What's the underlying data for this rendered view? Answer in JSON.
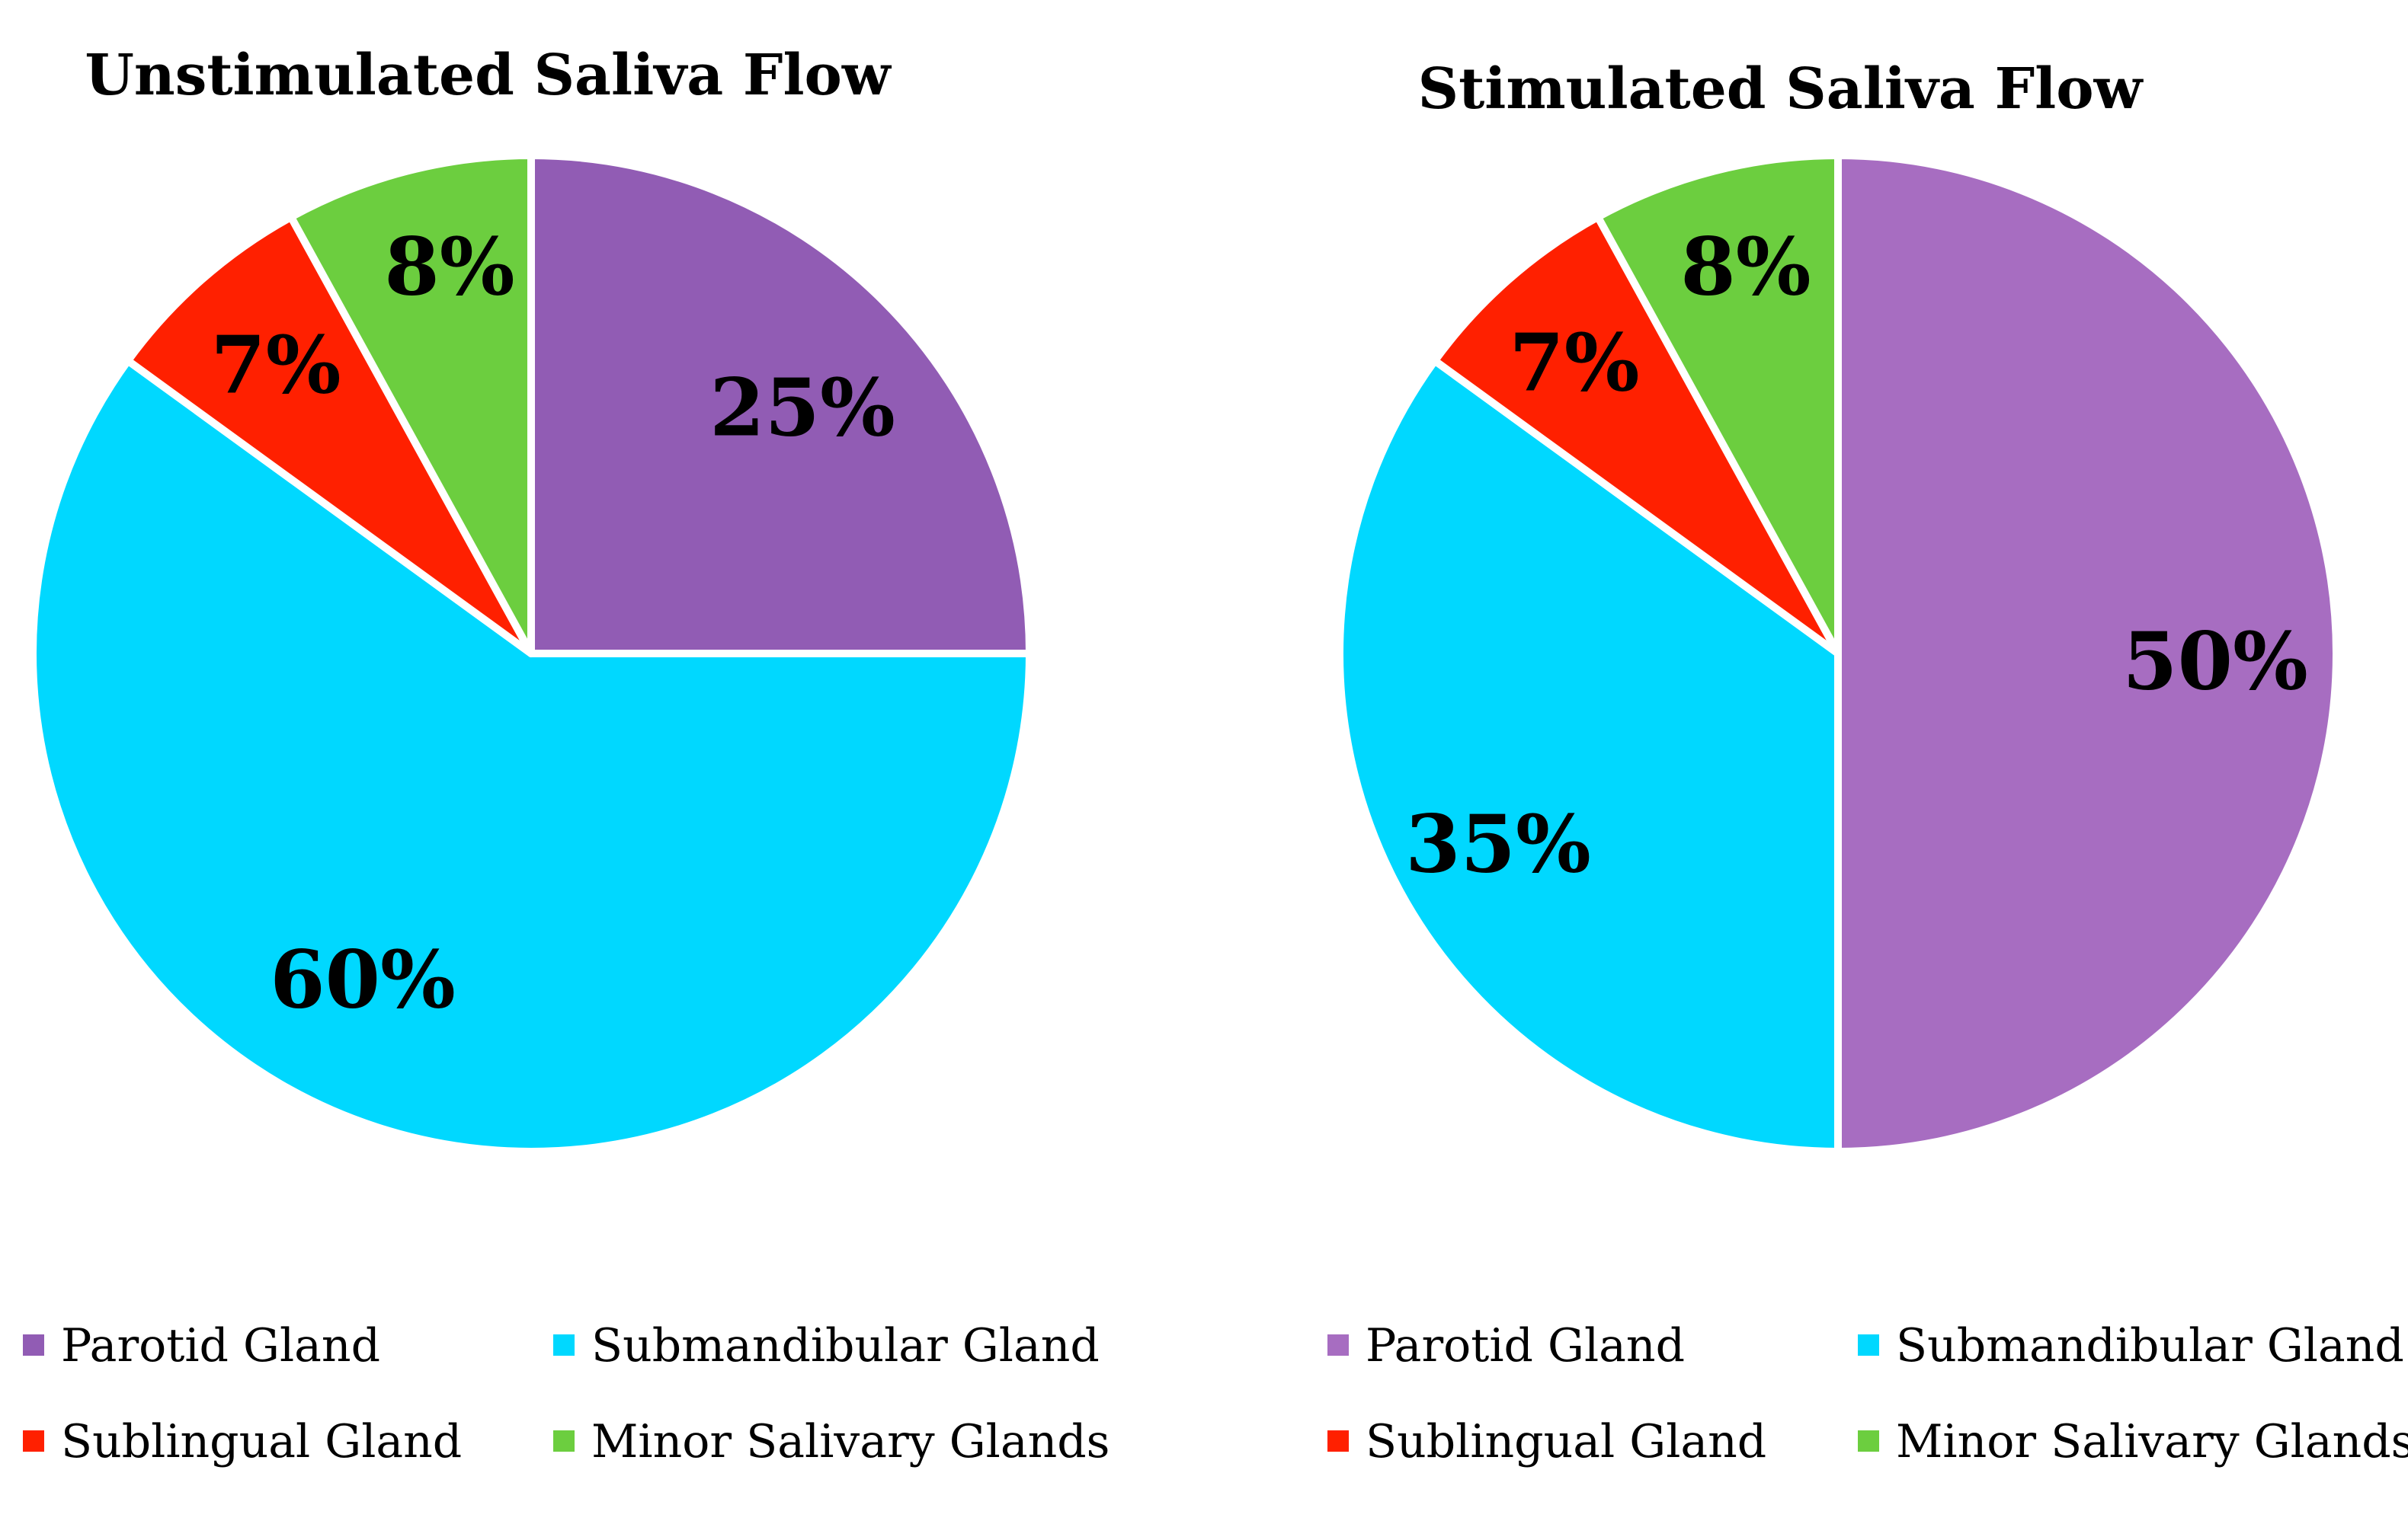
{
  "chart_data": [
    {
      "type": "pie",
      "title": "Unstimulated Saliva Flow",
      "series": [
        {
          "name": "Parotid Gland",
          "value": 25,
          "label": "25%",
          "color": "#915CB4"
        },
        {
          "name": "Submandibular Gland",
          "value": 60,
          "label": "60%",
          "color": "#00D8FF"
        },
        {
          "name": "Sublingual Gland",
          "value": 7,
          "label": "7%",
          "color": "#FF2000"
        },
        {
          "name": "Minor Salivary Glands",
          "value": 8,
          "label": "8%",
          "color": "#6CCE3F"
        }
      ],
      "legend": {
        "placement": "bottom",
        "items": [
          {
            "label": "Parotid Gland",
            "color": "#915CB4"
          },
          {
            "label": "Submandibular Gland",
            "color": "#00D8FF"
          },
          {
            "label": "Sublingual Gland",
            "color": "#FF2000"
          },
          {
            "label": "Minor Salivary Glands",
            "color": "#6CCE3F"
          }
        ]
      }
    },
    {
      "type": "pie",
      "title": "Stimulated Saliva Flow",
      "series": [
        {
          "name": "Parotid Gland",
          "value": 50,
          "label": "50%",
          "color": "#A76DC1"
        },
        {
          "name": "Submandibular Gland",
          "value": 35,
          "label": "35%",
          "color": "#00D8FF"
        },
        {
          "name": "Sublingual Gland",
          "value": 7,
          "label": "7%",
          "color": "#FF2000"
        },
        {
          "name": "Minor Salivary Glands",
          "value": 8,
          "label": "8%",
          "color": "#6CCE3F"
        }
      ],
      "legend": {
        "placement": "bottom",
        "items": [
          {
            "label": "Parotid Gland",
            "color": "#A76DC1"
          },
          {
            "label": "Submandibular Gland",
            "color": "#00D8FF"
          },
          {
            "label": "Sublingual Gland",
            "color": "#FF2000"
          },
          {
            "label": "Minor Salivary Glands",
            "color": "#6CCE3F"
          }
        ]
      }
    }
  ]
}
